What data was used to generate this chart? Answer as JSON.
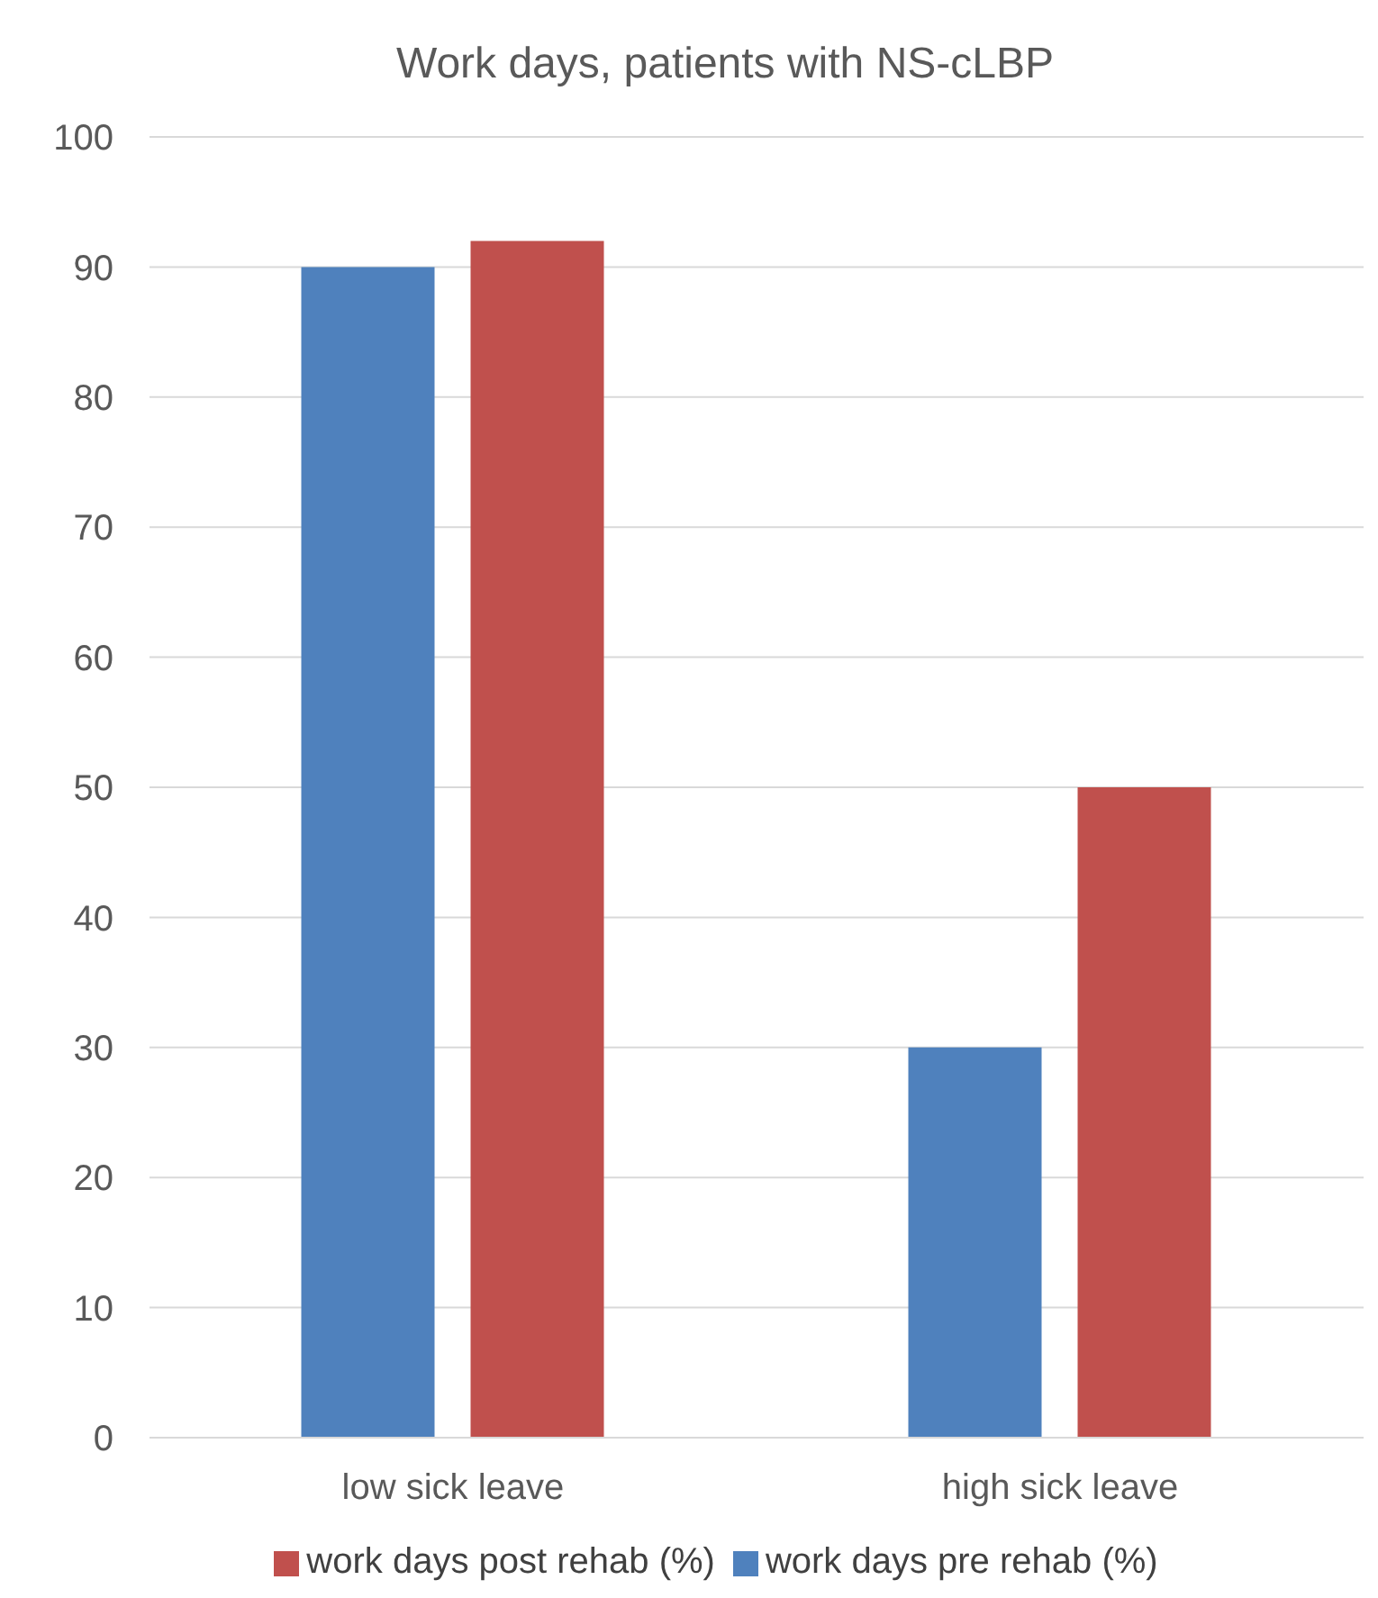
{
  "chart_data": {
    "type": "bar",
    "title": "Work days, patients with NS-cLBP",
    "categories": [
      "low sick leave",
      "high sick leave"
    ],
    "series": [
      {
        "name": "work days pre rehab (%)",
        "color": "#4f81bd",
        "values": [
          90,
          30
        ]
      },
      {
        "name": "work days post rehab (%)",
        "color": "#c0504d",
        "values": [
          92,
          50
        ]
      }
    ],
    "ylim": [
      0,
      100
    ],
    "yticks": [
      0,
      10,
      20,
      30,
      40,
      50,
      60,
      70,
      80,
      90,
      100
    ],
    "grid": "y",
    "legend": "bottom"
  }
}
